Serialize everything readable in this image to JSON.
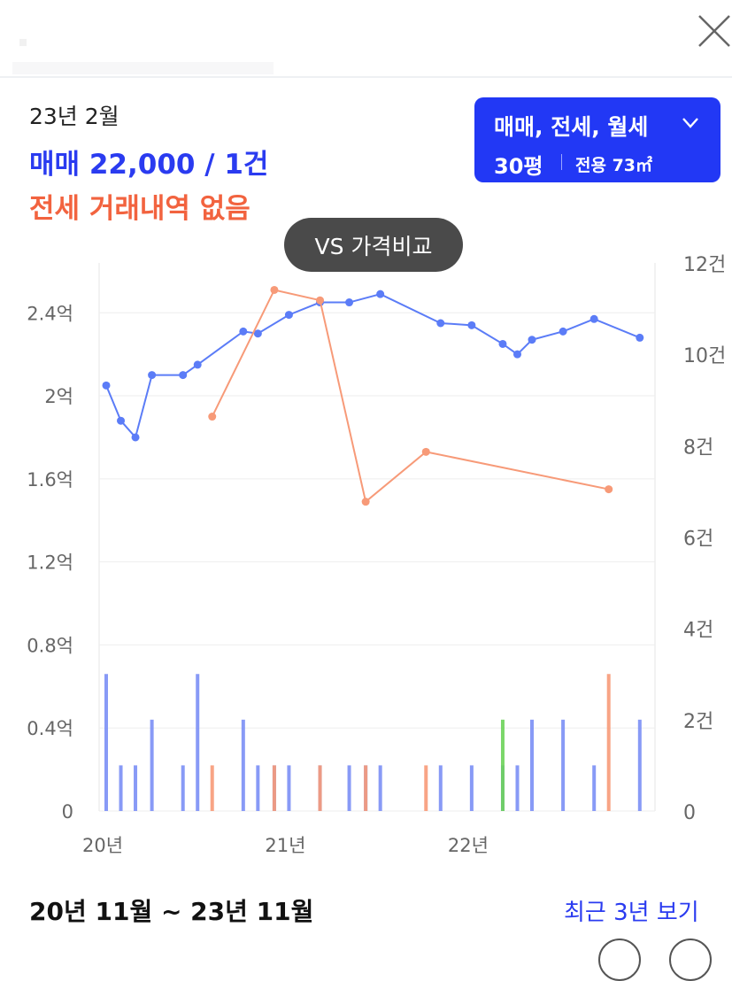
{
  "header": {
    "close_icon": "close-icon"
  },
  "summary": {
    "date": "23년 2월",
    "sale": "매매 22,000 / 1건",
    "jeonse": "전세 거래내역 없음",
    "sale_color": "#2a3bf0",
    "jeonse_color": "#f2633f"
  },
  "filter": {
    "types": "매매, 전세, 월세",
    "chevron_icon": "chevron-down-icon",
    "area": "30평",
    "exclusive": "전용 73㎡",
    "bg_color": "#2238f5"
  },
  "compare_button": {
    "label": "VS 가격비교"
  },
  "chart_data": {
    "type": "line",
    "left_axis": {
      "ticks": [
        "0",
        "0.4억",
        "0.8억",
        "1.2억",
        "1.6억",
        "2억",
        "2.4억"
      ],
      "unit": "억",
      "ylim": [
        0,
        2.64
      ]
    },
    "right_axis": {
      "ticks": [
        "0",
        "2건",
        "4건",
        "6건",
        "8건",
        "10건",
        "12건"
      ],
      "unit": "건",
      "ylim": [
        0,
        12
      ]
    },
    "x_ticks": [
      {
        "label": "20년",
        "t": 0.0
      },
      {
        "label": "21년",
        "t": 1.0
      },
      {
        "label": "22년",
        "t": 2.0
      }
    ],
    "xlim": [
      0.0,
      2.95
    ],
    "grid": true,
    "series": [
      {
        "kind": "price-line",
        "color": "#5b7cf7",
        "points": [
          [
            0.0,
            2.05
          ],
          [
            0.08,
            1.88
          ],
          [
            0.16,
            1.8
          ],
          [
            0.25,
            2.1
          ],
          [
            0.42,
            2.1
          ],
          [
            0.5,
            2.15
          ],
          [
            0.75,
            2.31
          ],
          [
            0.83,
            2.3
          ],
          [
            1.0,
            2.39
          ],
          [
            1.17,
            2.45
          ],
          [
            1.33,
            2.45
          ],
          [
            1.5,
            2.49
          ],
          [
            1.83,
            2.35
          ],
          [
            2.0,
            2.34
          ],
          [
            2.17,
            2.25
          ],
          [
            2.25,
            2.2
          ],
          [
            2.33,
            2.27
          ],
          [
            2.5,
            2.31
          ],
          [
            2.67,
            2.37
          ],
          [
            2.92,
            2.28
          ]
        ]
      },
      {
        "kind": "price-line",
        "color": "#f79a78",
        "points": [
          [
            0.58,
            1.9
          ],
          [
            0.92,
            2.51
          ],
          [
            1.17,
            2.46
          ],
          [
            1.42,
            1.49
          ],
          [
            1.75,
            1.73
          ],
          [
            2.75,
            1.55
          ]
        ]
      },
      {
        "kind": "count-bars",
        "color": "#7b8ff5",
        "points": [
          [
            0.0,
            3
          ],
          [
            0.08,
            1
          ],
          [
            0.16,
            1
          ],
          [
            0.25,
            2
          ],
          [
            0.42,
            1
          ],
          [
            0.5,
            3
          ],
          [
            0.75,
            2
          ],
          [
            0.83,
            1
          ],
          [
            0.92,
            1
          ],
          [
            1.0,
            1
          ],
          [
            1.17,
            1
          ],
          [
            1.33,
            1
          ],
          [
            1.42,
            1
          ],
          [
            1.5,
            1
          ],
          [
            1.83,
            1
          ],
          [
            2.0,
            1
          ],
          [
            2.17,
            1
          ],
          [
            2.25,
            1
          ],
          [
            2.33,
            2
          ],
          [
            2.5,
            2
          ],
          [
            2.67,
            1
          ],
          [
            2.92,
            2
          ]
        ]
      },
      {
        "kind": "count-bars",
        "color": "#f79a78",
        "points": [
          [
            0.58,
            1
          ],
          [
            0.92,
            1
          ],
          [
            1.17,
            1
          ],
          [
            1.42,
            1
          ],
          [
            1.75,
            1
          ],
          [
            2.75,
            3
          ]
        ]
      },
      {
        "kind": "count-bars",
        "color": "#6dd35a",
        "points": [
          [
            2.17,
            2
          ]
        ]
      }
    ]
  },
  "footer": {
    "period": "20년 11월 ~ 23년 11월",
    "recent_link": "최근 3년 보기"
  }
}
